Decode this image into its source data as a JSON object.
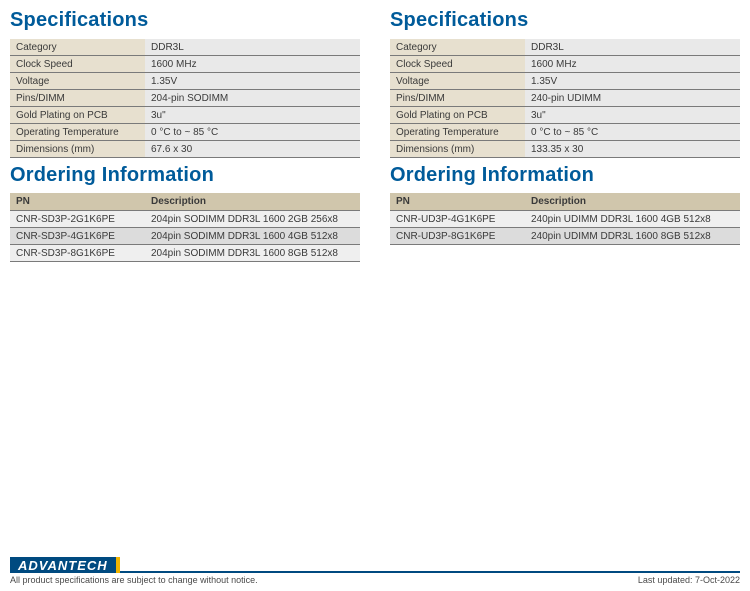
{
  "left": {
    "specs_title": "Specifications",
    "specs": [
      {
        "k": "Category",
        "v": "DDR3L"
      },
      {
        "k": "Clock Speed",
        "v": "1600 MHz"
      },
      {
        "k": "Voltage",
        "v": "1.35V"
      },
      {
        "k": "Pins/DIMM",
        "v": "204-pin SODIMM"
      },
      {
        "k": "Gold Plating on PCB",
        "v": "3u\""
      },
      {
        "k": "Operating Temperature",
        "v": "0 °C to ~ 85 °C"
      },
      {
        "k": "Dimensions (mm)",
        "v": "67.6 x 30"
      }
    ],
    "order_title": "Ordering Information",
    "order_headers": {
      "pn": "PN",
      "desc": "Description"
    },
    "orders": [
      {
        "pn": "CNR-SD3P-2G1K6PE",
        "desc": "204pin SODIMM DDR3L 1600 2GB 256x8"
      },
      {
        "pn": "CNR-SD3P-4G1K6PE",
        "desc": "204pin SODIMM DDR3L 1600 4GB 512x8"
      },
      {
        "pn": "CNR-SD3P-8G1K6PE",
        "desc": "204pin SODIMM DDR3L 1600 8GB 512x8"
      }
    ]
  },
  "right": {
    "specs_title": "Specifications",
    "specs": [
      {
        "k": "Category",
        "v": "DDR3L"
      },
      {
        "k": "Clock Speed",
        "v": "1600 MHz"
      },
      {
        "k": "Voltage",
        "v": "1.35V"
      },
      {
        "k": "Pins/DIMM",
        "v": "240-pin UDIMM"
      },
      {
        "k": "Gold Plating on PCB",
        "v": "3u\""
      },
      {
        "k": "Operating Temperature",
        "v": "0 °C to ~ 85 °C"
      },
      {
        "k": "Dimensions (mm)",
        "v": "133.35 x 30"
      }
    ],
    "order_title": "Ordering Information",
    "order_headers": {
      "pn": "PN",
      "desc": "Description"
    },
    "orders": [
      {
        "pn": "CNR-UD3P-4G1K6PE",
        "desc": "240pin UDIMM DDR3L 1600 4GB 512x8"
      },
      {
        "pn": "CNR-UD3P-8G1K6PE",
        "desc": "240pin UDIMM DDR3L 1600 8GB 512x8"
      }
    ]
  },
  "footer": {
    "brand": "ADVANTECH",
    "disclaimer": "All product specifications are subject to change without notice.",
    "updated": "Last updated: 7-Oct-2022"
  },
  "colors": {
    "heading": "#005b9a",
    "spec_key_bg": "#e7e0cf",
    "spec_val_bg": "#e9e9e9",
    "order_header_bg": "#d0c6ac",
    "row_alt0": "#efefef",
    "row_alt1": "#dcdcdc",
    "row_border": "#7a7a7a",
    "brand_bg": "#004a80",
    "brand_accent": "#f0b400"
  }
}
